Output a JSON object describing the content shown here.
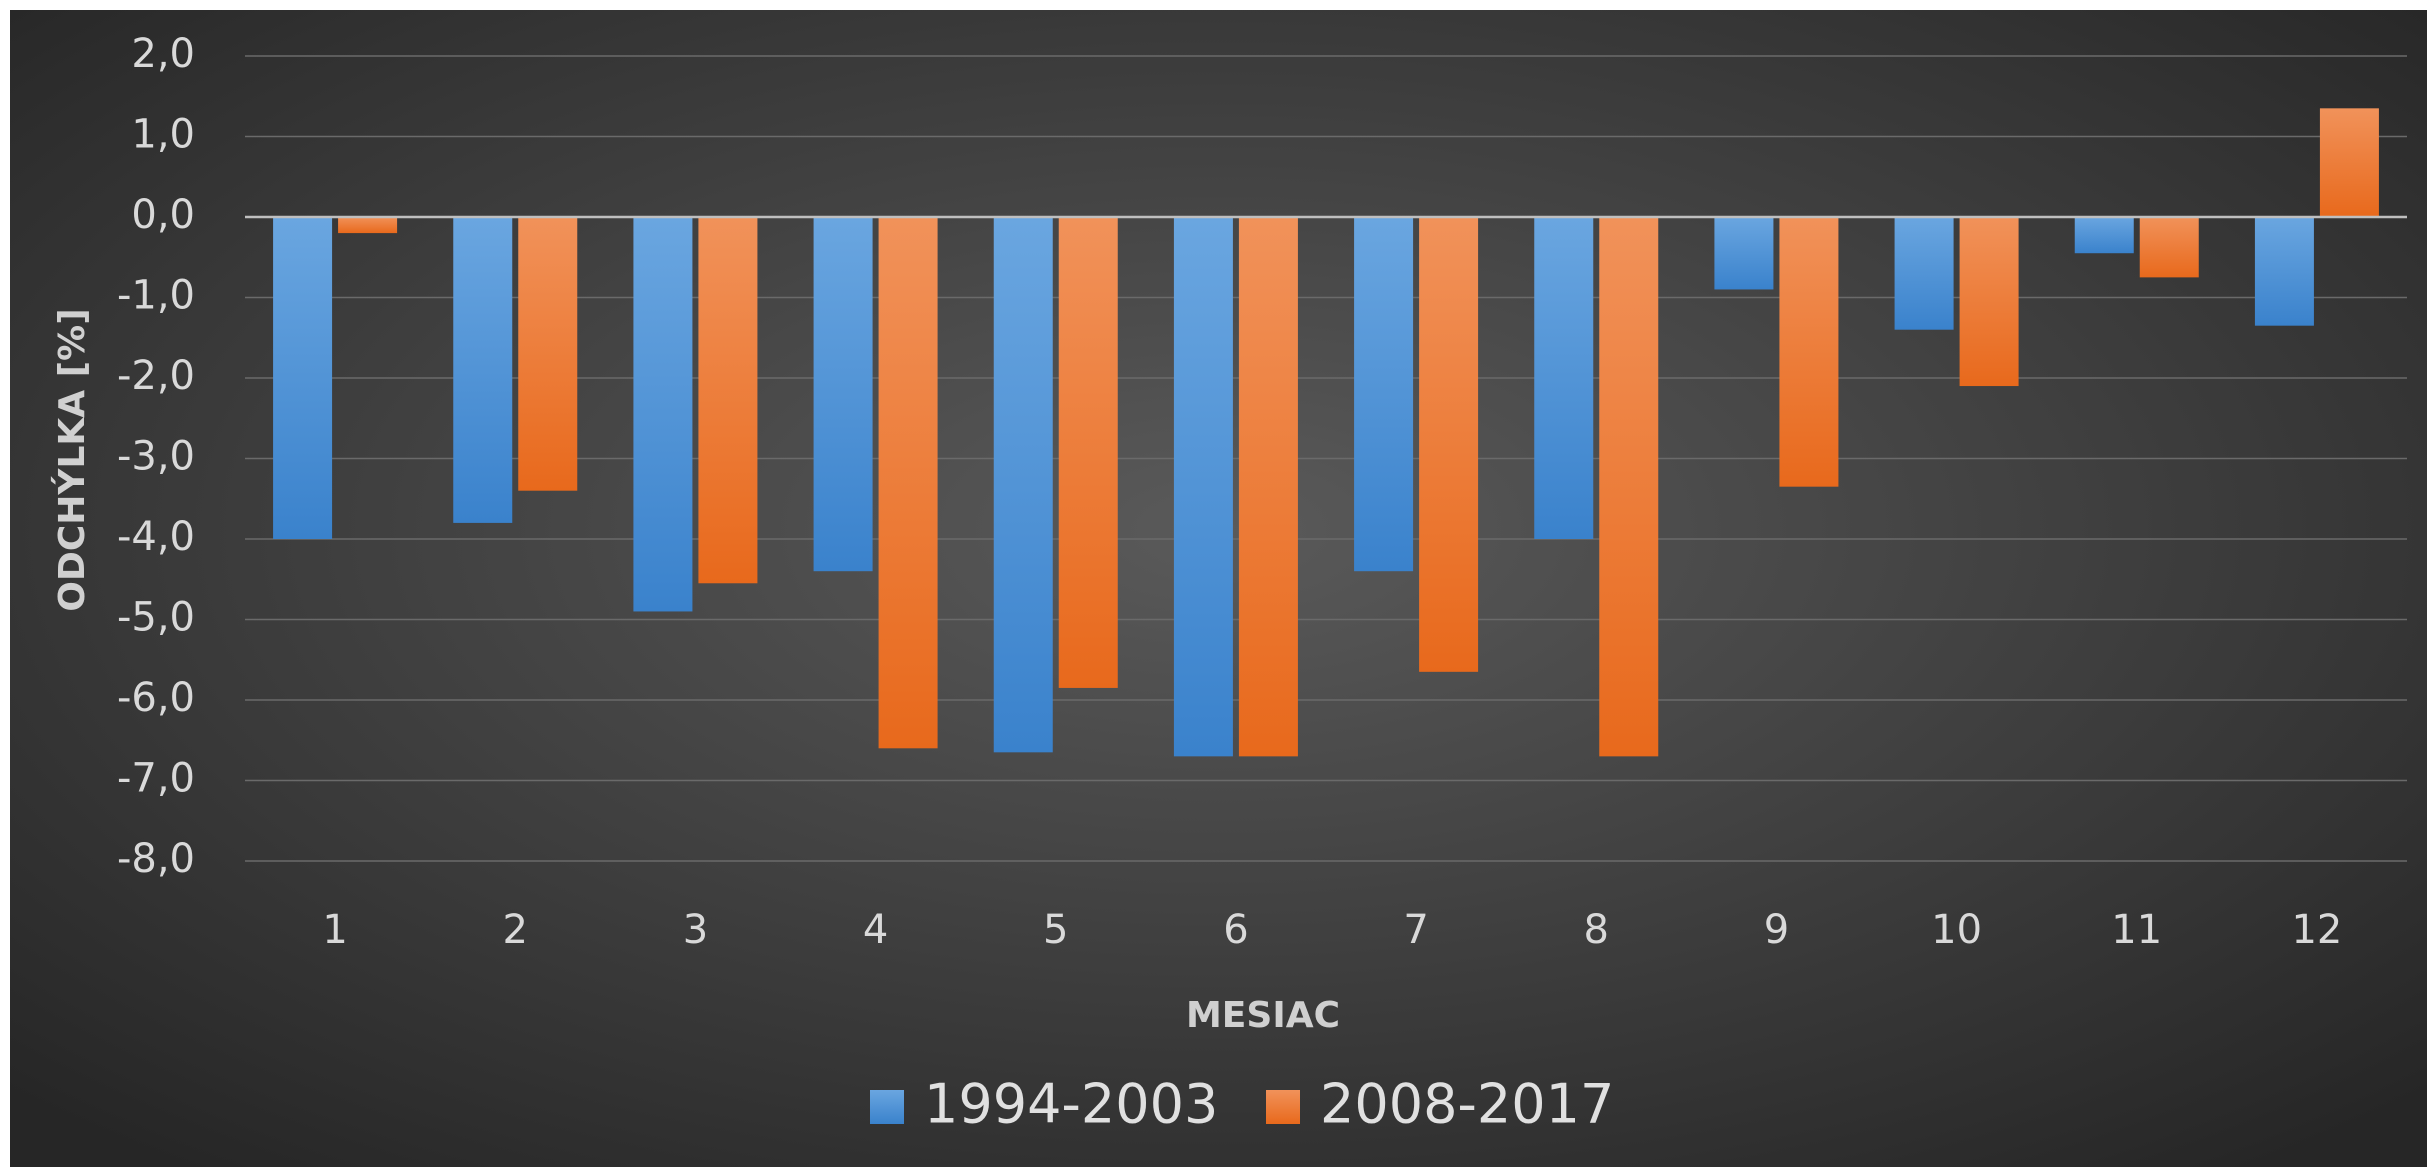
{
  "chart_data": {
    "type": "bar",
    "xlabel": "MESIAC",
    "ylabel": "ODCHÝLKA [%]",
    "categories": [
      "1",
      "2",
      "3",
      "4",
      "5",
      "6",
      "7",
      "8",
      "9",
      "10",
      "11",
      "12"
    ],
    "series": [
      {
        "name": "1994-2003",
        "color": "#4a90d9",
        "values": [
          -4.0,
          -3.8,
          -4.9,
          -4.4,
          -6.65,
          -6.7,
          -4.4,
          -4.0,
          -0.9,
          -1.4,
          -0.45,
          -1.35
        ]
      },
      {
        "name": "2008-2017",
        "color": "#ee7a2e",
        "values": [
          -0.2,
          -3.4,
          -4.55,
          -6.6,
          -5.85,
          -6.7,
          -5.65,
          -6.7,
          -3.35,
          -2.1,
          -0.75,
          1.35
        ]
      }
    ],
    "ylim": [
      -8,
      2
    ],
    "yticks": [
      {
        "value": 2,
        "label": "2,0"
      },
      {
        "value": 1,
        "label": "1,0"
      },
      {
        "value": 0,
        "label": "0,0"
      },
      {
        "value": -1,
        "label": "-1,0"
      },
      {
        "value": -2,
        "label": "-2,0"
      },
      {
        "value": -3,
        "label": "-3,0"
      },
      {
        "value": -4,
        "label": "-4,0"
      },
      {
        "value": -5,
        "label": "-5,0"
      },
      {
        "value": -6,
        "label": "-6,0"
      },
      {
        "value": -7,
        "label": "-7,0"
      },
      {
        "value": -8,
        "label": "-8,0"
      }
    ],
    "grid": true,
    "legend": "bottom"
  }
}
